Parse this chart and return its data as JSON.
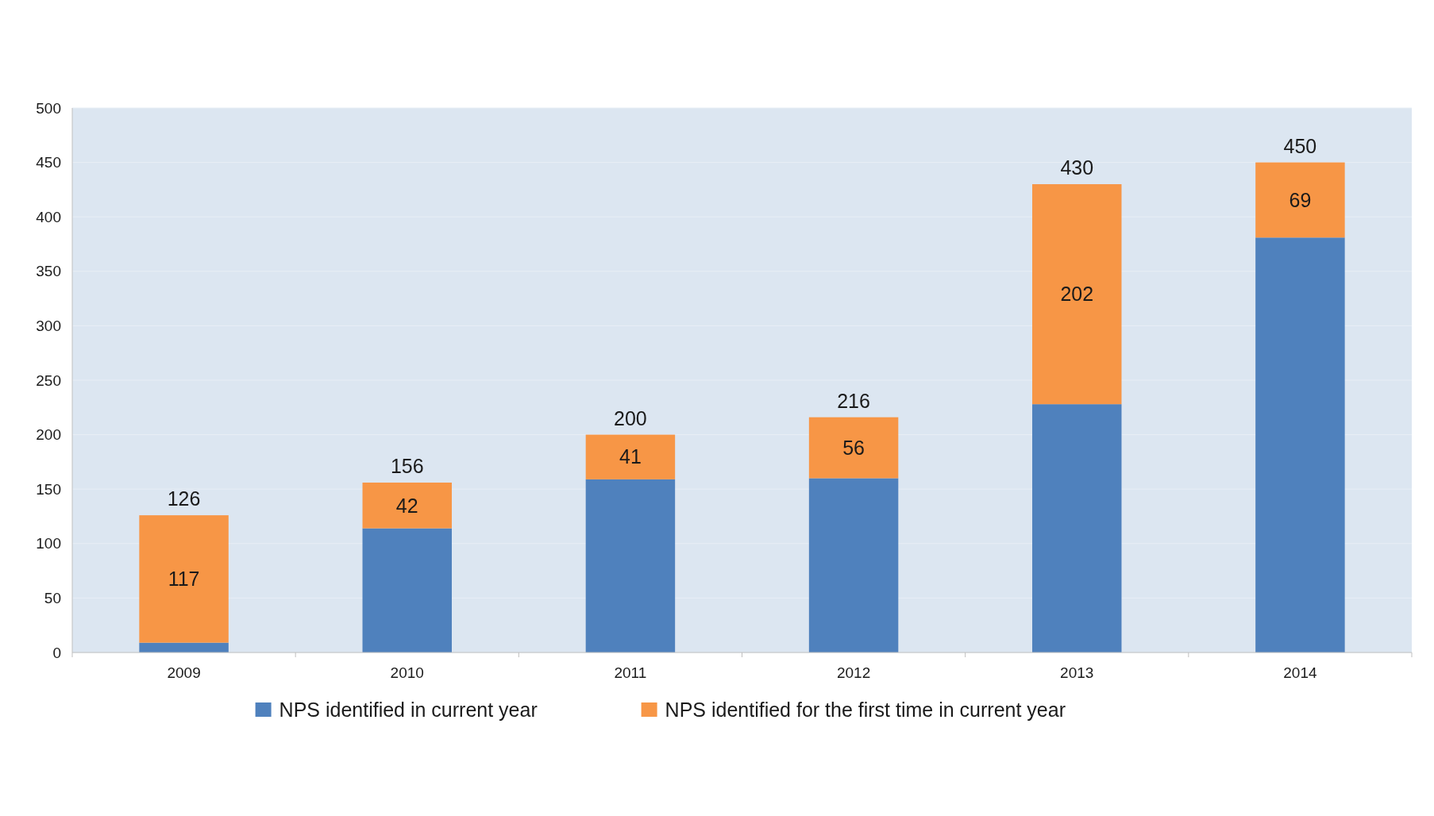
{
  "chart_data": {
    "type": "bar",
    "stacked": true,
    "categories": [
      "2009",
      "2010",
      "2011",
      "2012",
      "2013",
      "2014"
    ],
    "series": [
      {
        "name": "NPS identified in current year",
        "color": "#4f81bd",
        "values": [
          9,
          114,
          159,
          160,
          228,
          381
        ]
      },
      {
        "name": "NPS identified for the first time in current year",
        "color": "#f79646",
        "values": [
          117,
          42,
          41,
          56,
          202,
          69
        ],
        "value_labels": [
          "117",
          "42",
          "41",
          "56",
          "202",
          "69"
        ]
      }
    ],
    "totals": [
      "126",
      "156",
      "200",
      "216",
      "430",
      "450"
    ],
    "ylim": [
      0,
      500
    ],
    "yticks": [
      0,
      50,
      100,
      150,
      200,
      250,
      300,
      350,
      400,
      450,
      500
    ],
    "grid": "y",
    "legend": "bottom"
  }
}
